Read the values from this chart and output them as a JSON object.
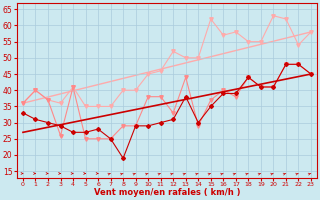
{
  "xlabel": "Vent moyen/en rafales ( km/h )",
  "xlim": [
    -0.5,
    23.5
  ],
  "ylim": [
    13,
    67
  ],
  "yticks": [
    15,
    20,
    25,
    30,
    35,
    40,
    45,
    50,
    55,
    60,
    65
  ],
  "xticks": [
    0,
    1,
    2,
    3,
    4,
    5,
    6,
    7,
    8,
    9,
    10,
    11,
    12,
    13,
    14,
    15,
    16,
    17,
    18,
    19,
    20,
    21,
    22,
    23
  ],
  "bg_color": "#cce9f0",
  "grid_color": "#aaccdd",
  "dark_line1_y": [
    33,
    31,
    30,
    29,
    27,
    27,
    28,
    25,
    19,
    29,
    29,
    30,
    31,
    38,
    30,
    35,
    39,
    39,
    44,
    41,
    41,
    48,
    48,
    45
  ],
  "dark_line1_color": "#cc0000",
  "dark_trend_color": "#cc0000",
  "dark_trend_y0": 27.0,
  "dark_trend_y23": 45.0,
  "pink_line1_y": [
    36,
    40,
    37,
    26,
    41,
    25,
    25,
    25,
    29,
    29,
    38,
    38,
    33,
    44,
    29,
    37,
    40,
    38,
    44,
    41,
    41,
    48,
    48,
    45
  ],
  "pink_line1_color": "#ff8888",
  "pink_line2_y": [
    36,
    40,
    37,
    36,
    41,
    35,
    35,
    35,
    40,
    40,
    45,
    46,
    52,
    50,
    50,
    62,
    57,
    58,
    55,
    55,
    63,
    62,
    54,
    58
  ],
  "pink_line2_color": "#ffaaaa",
  "pink_trend_color": "#ffaaaa",
  "pink_trend_y0": 36.0,
  "pink_trend_y23": 58.0,
  "arrow_color": "#cc0000",
  "axis_color": "#cc0000",
  "spine_color": "#cc0000"
}
